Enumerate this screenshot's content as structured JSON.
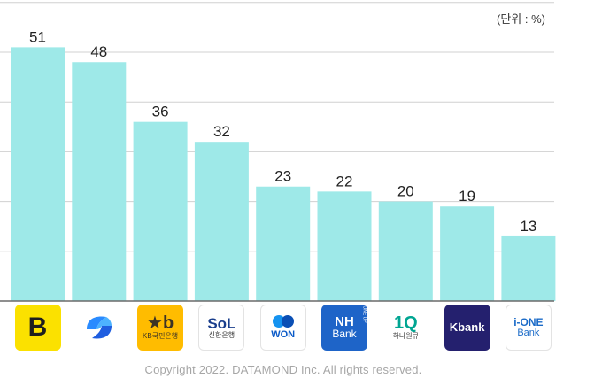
{
  "unit_label": "(단위 : %)",
  "copyright": "Copyright 2022. DATAMOND Inc. All rights reserved.",
  "colors": {
    "bar": "#9ee9e8",
    "grid": "#d0d0d0",
    "axis": "#6a6a6a",
    "label": "#222222"
  },
  "chart_data": {
    "type": "bar",
    "title": "",
    "xlabel": "",
    "ylabel": "",
    "unit": "%",
    "ylim": [
      0,
      60
    ],
    "grid": true,
    "categories": [
      "카카오뱅크",
      "토스",
      "KB국민은행",
      "신한은행",
      "우리은행",
      "NH농협은행",
      "하나은행",
      "케이뱅크",
      "IBK기업은행"
    ],
    "values": [
      51,
      48,
      36,
      32,
      23,
      22,
      20,
      19,
      13
    ]
  },
  "logos": [
    {
      "name": "kakaobank-logo",
      "icon": "kakaobank-b-icon",
      "text": "B",
      "sub": "",
      "bg": "#fbe100",
      "fg": "#1e1e1e",
      "border": ""
    },
    {
      "name": "toss-logo",
      "icon": "toss-blue-swirl-icon",
      "text": "",
      "sub": "",
      "bg": "#ffffff",
      "fg": "#1f6ef5",
      "border": ""
    },
    {
      "name": "kb-logo",
      "icon": "kb-star-icon",
      "text": "★b",
      "sub": "KB국민은행",
      "bg": "#ffbc00",
      "fg": "#3b3326",
      "border": ""
    },
    {
      "name": "shinhan-logo",
      "icon": "sol-icon",
      "text": "SoL",
      "sub": "신한은행",
      "bg": "#ffffff",
      "fg": "#1a3e8c",
      "border": "#e3e3e3"
    },
    {
      "name": "woori-won-logo",
      "icon": "won-circles-icon",
      "text": "WON",
      "sub": "",
      "bg": "#ffffff",
      "fg": "#0a5ac8",
      "border": "#e3e3e3"
    },
    {
      "name": "nh-logo",
      "icon": "nh-icon",
      "text": "NH",
      "sub": "Bank",
      "tag": "ONE UP",
      "bg": "#1e64c8",
      "fg": "#ffffff",
      "border": ""
    },
    {
      "name": "hana-logo",
      "icon": "1q-icon",
      "text": "1Q",
      "sub": "하나원큐",
      "bg": "#ffffff",
      "fg": "#00a592",
      "border": ""
    },
    {
      "name": "kbank-logo",
      "icon": "kbank-icon",
      "text": "Kbank",
      "sub": "",
      "bg": "#24206e",
      "fg": "#ffffff",
      "border": ""
    },
    {
      "name": "ibk-logo",
      "icon": "ione-icon",
      "text": "i-ONE",
      "sub": "Bank",
      "bg": "#ffffff",
      "fg": "#1b6bc8",
      "border": "#e3e3e3"
    }
  ]
}
